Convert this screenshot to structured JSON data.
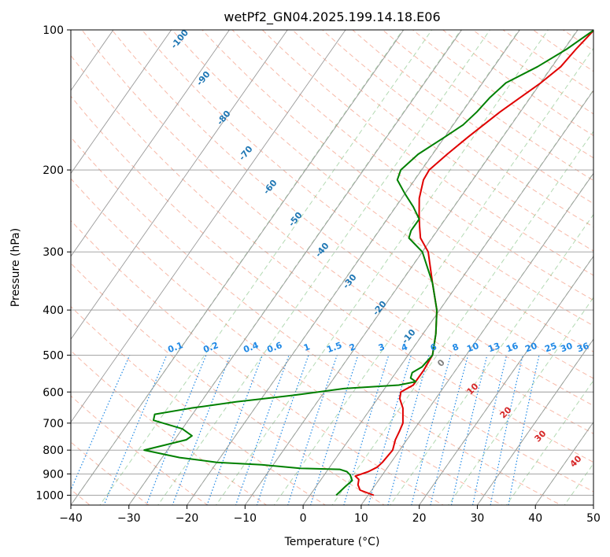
{
  "chart_data": {
    "type": "line",
    "title": "wetPf2_GN04.2025.199.14.18.E06",
    "xlabel": "Temperature (°C)",
    "ylabel": "Pressure (hPa)",
    "xlim": [
      -40,
      50
    ],
    "ylim": [
      1050,
      100
    ],
    "y_scale": "log",
    "xticks": [
      -40,
      -30,
      -20,
      -10,
      0,
      10,
      20,
      30,
      40,
      50
    ],
    "xtick_labels": [
      "−40",
      "−30",
      "−20",
      "−10",
      "0",
      "10",
      "20",
      "30",
      "40",
      "50"
    ],
    "yticks": [
      1000,
      900,
      800,
      700,
      600,
      500,
      400,
      300,
      200,
      100
    ],
    "ytick_labels": [
      "1000",
      "900",
      "800",
      "700",
      "600",
      "500",
      "400",
      "300",
      "200",
      "100"
    ],
    "grid": true,
    "series": [
      {
        "color": "#e00000",
        "points": [
          [
            1000,
            11
          ],
          [
            975,
            8
          ],
          [
            950,
            7
          ],
          [
            925,
            6.5
          ],
          [
            910,
            5.5
          ],
          [
            890,
            7.2
          ],
          [
            870,
            8.2
          ],
          [
            850,
            8.5
          ],
          [
            800,
            8.8
          ],
          [
            760,
            8
          ],
          [
            730,
            7.7
          ],
          [
            700,
            7.3
          ],
          [
            650,
            5.5
          ],
          [
            620,
            3.8
          ],
          [
            600,
            3.2
          ],
          [
            580,
            4.5
          ],
          [
            560,
            4.5
          ],
          [
            540,
            4.5
          ],
          [
            500,
            4.2
          ],
          [
            450,
            2.2
          ],
          [
            400,
            -0.5
          ],
          [
            350,
            -4.5
          ],
          [
            300,
            -9
          ],
          [
            280,
            -12
          ],
          [
            265,
            -13.5
          ],
          [
            250,
            -15
          ],
          [
            230,
            -17
          ],
          [
            210,
            -18.5
          ],
          [
            200,
            -18.7
          ],
          [
            185,
            -17.5
          ],
          [
            170,
            -16
          ],
          [
            150,
            -13.5
          ],
          [
            130,
            -10
          ],
          [
            120,
            -8.5
          ],
          [
            110,
            -8
          ],
          [
            100,
            -7.2
          ]
        ]
      },
      {
        "color": "#008000",
        "points": [
          [
            1000,
            4.5
          ],
          [
            960,
            5
          ],
          [
            930,
            5.5
          ],
          [
            905,
            4.5
          ],
          [
            890,
            3.5
          ],
          [
            880,
            2
          ],
          [
            875,
            -5
          ],
          [
            860,
            -12
          ],
          [
            850,
            -20
          ],
          [
            830,
            -27
          ],
          [
            800,
            -34
          ],
          [
            780,
            -31
          ],
          [
            760,
            -28
          ],
          [
            745,
            -27.5
          ],
          [
            720,
            -30
          ],
          [
            690,
            -36
          ],
          [
            670,
            -36.5
          ],
          [
            650,
            -31
          ],
          [
            630,
            -24
          ],
          [
            610,
            -15
          ],
          [
            590,
            -7
          ],
          [
            580,
            2
          ],
          [
            570,
            4.5
          ],
          [
            560,
            3.2
          ],
          [
            545,
            2.8
          ],
          [
            530,
            3.8
          ],
          [
            500,
            4.2
          ],
          [
            450,
            2.2
          ],
          [
            400,
            -0.5
          ],
          [
            350,
            -4.5
          ],
          [
            300,
            -10
          ],
          [
            280,
            -14
          ],
          [
            270,
            -14.5
          ],
          [
            255,
            -14.5
          ],
          [
            240,
            -17
          ],
          [
            225,
            -20
          ],
          [
            210,
            -23
          ],
          [
            200,
            -23.6
          ],
          [
            185,
            -22.5
          ],
          [
            170,
            -20
          ],
          [
            160,
            -18.3
          ],
          [
            150,
            -17.5
          ],
          [
            140,
            -17
          ],
          [
            130,
            -16
          ],
          [
            120,
            -12.5
          ],
          [
            110,
            -9.6
          ],
          [
            100,
            -7.2
          ]
        ]
      }
    ],
    "dry_adiabat_labels": [
      "-100",
      "-90",
      "-80",
      "-70",
      "-60",
      "-50",
      "-40",
      "-30",
      "-20",
      "-10"
    ],
    "mixing_ratio_labels": [
      "0.1",
      "0.2",
      "0.4",
      "0.6",
      "1",
      "1.5",
      "2",
      "3",
      "4",
      "6",
      "8",
      "10",
      "13",
      "16",
      "20",
      "25",
      "30",
      "36"
    ],
    "mixing_ratios": [
      0.1,
      0.2,
      0.4,
      0.6,
      1,
      1.5,
      2,
      3,
      4,
      6,
      8,
      10,
      13,
      16,
      20,
      25,
      30,
      36
    ],
    "moist_adiabat_labels": [
      "0",
      "10",
      "20",
      "30",
      "40"
    ],
    "colors": {
      "dry_adiabat": "#f08060",
      "moist_adiabat": "#55aa55",
      "mixing_ratio": "#1e88e5",
      "dry_label": "#1f77b4",
      "moist_label": "#d62728",
      "zero_label": "#808080",
      "grid": "#999999"
    }
  }
}
